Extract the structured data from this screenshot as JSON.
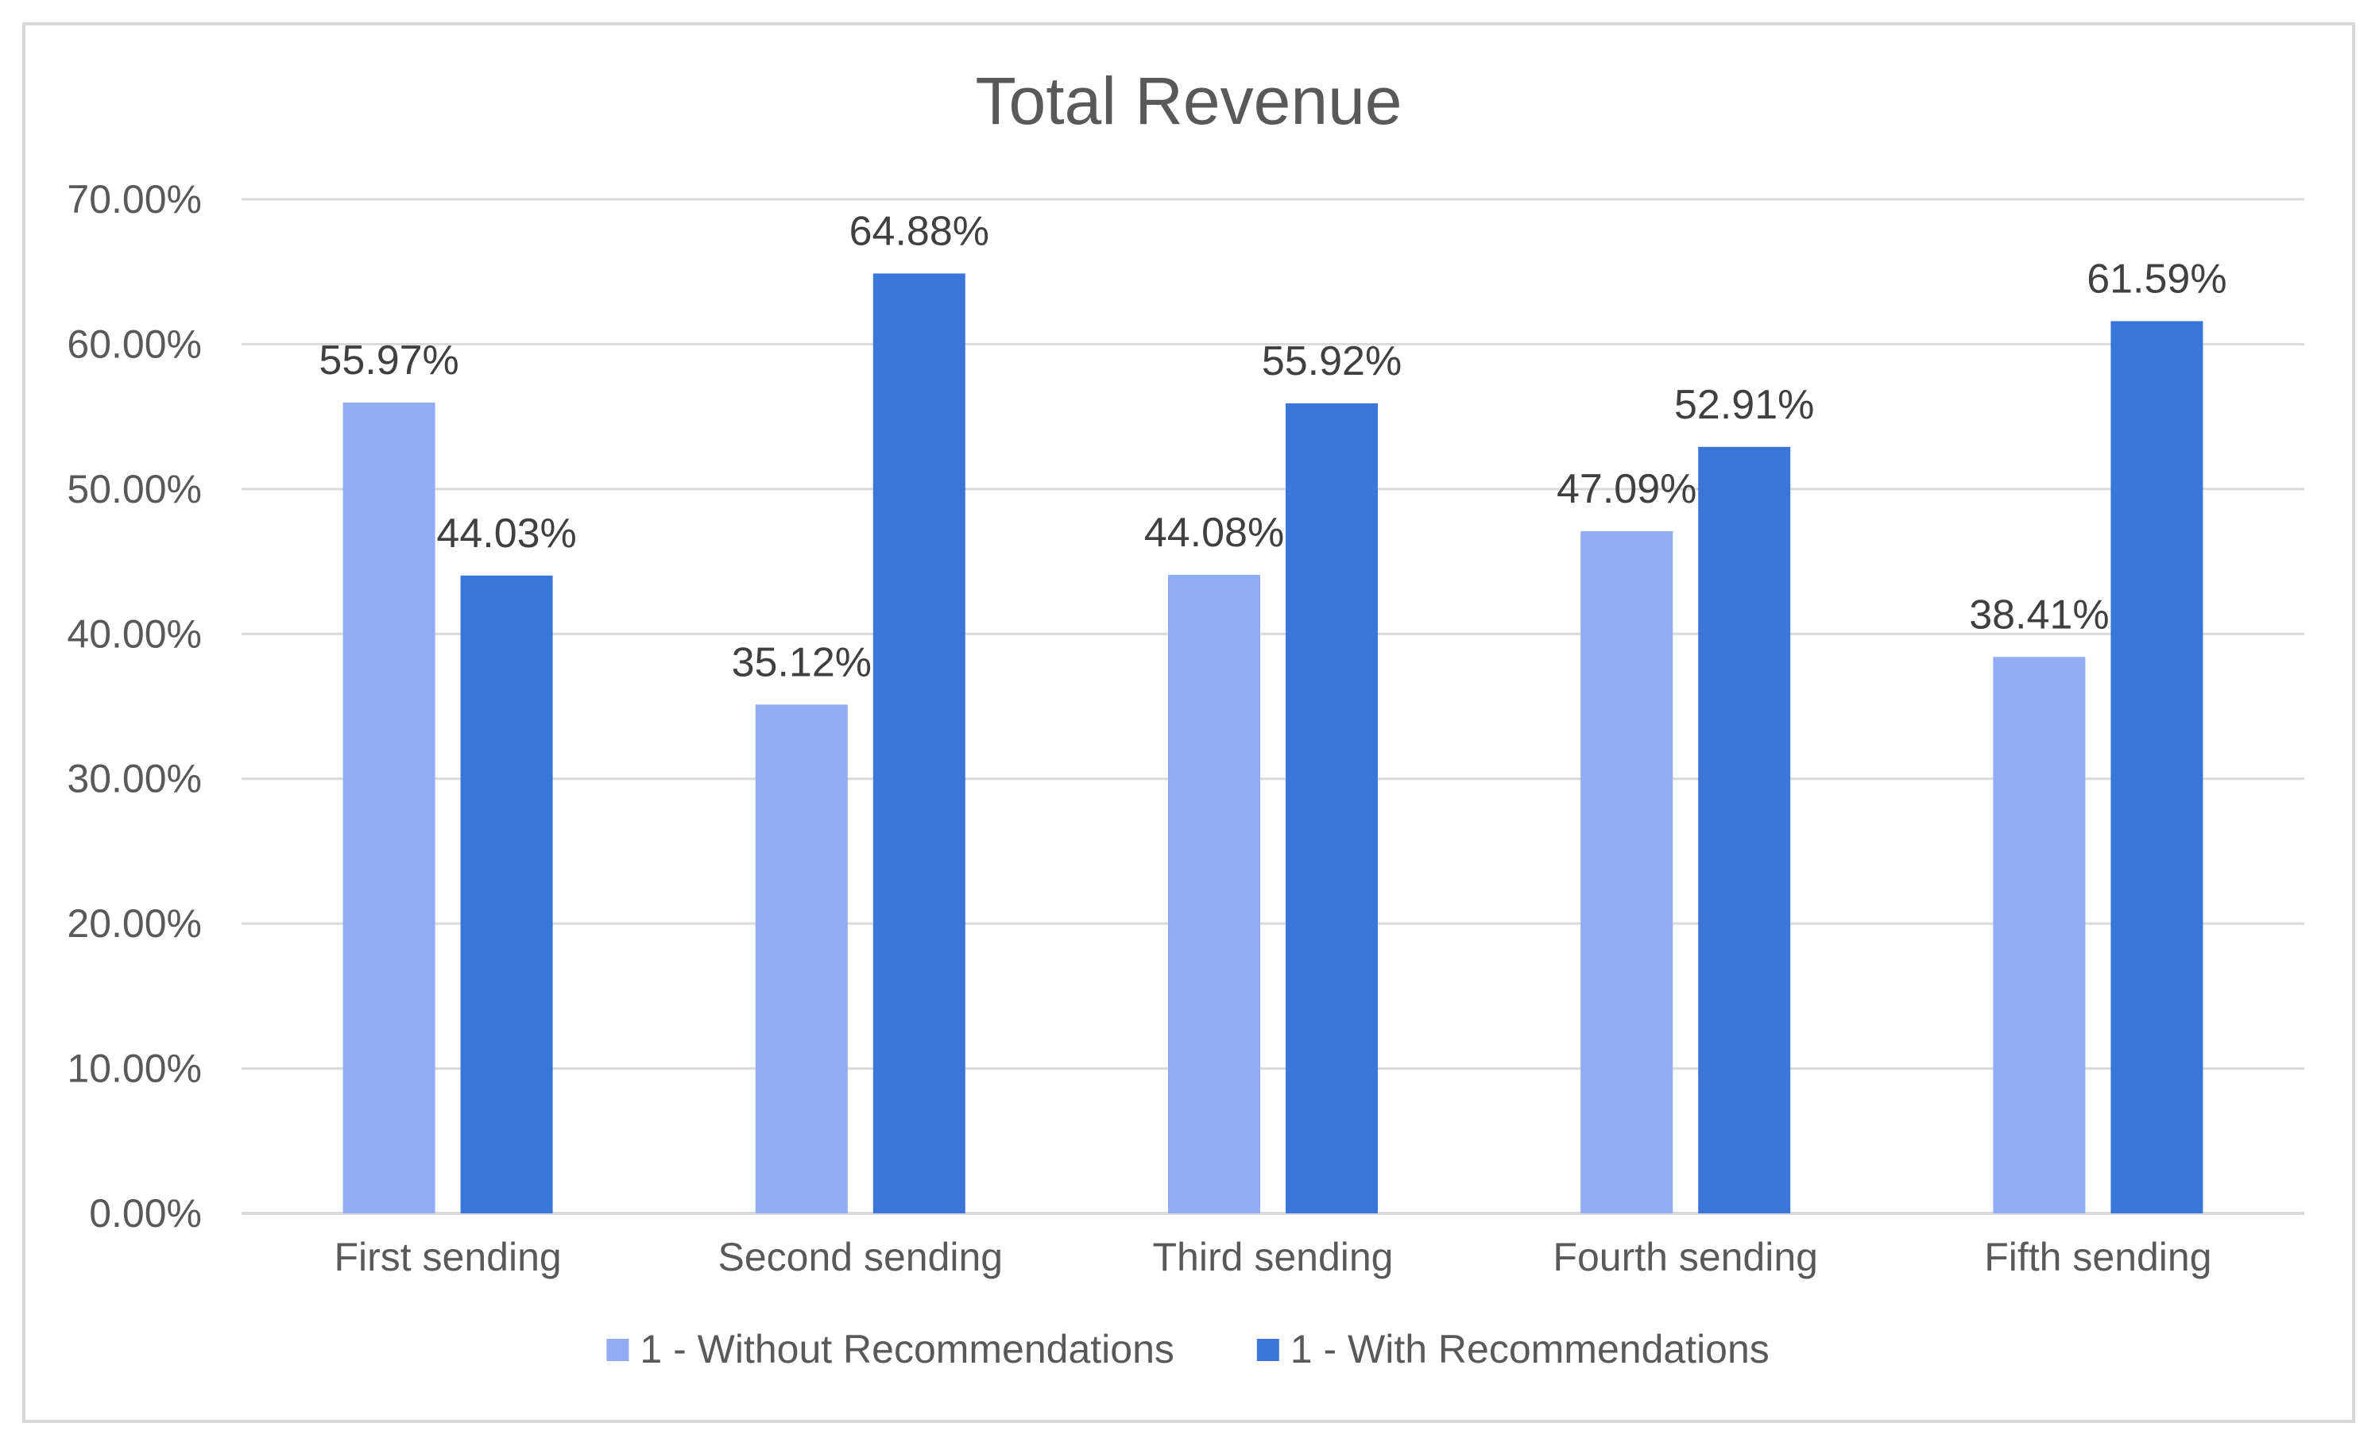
{
  "chart_data": {
    "type": "bar",
    "title": "Total Revenue",
    "xlabel": "",
    "ylabel": "",
    "ylim": [
      0,
      70
    ],
    "ytick_step": 10,
    "ytick_labels": [
      "0.00%",
      "10.00%",
      "20.00%",
      "30.00%",
      "40.00%",
      "50.00%",
      "60.00%",
      "70.00%"
    ],
    "grid": true,
    "legend_position": "bottom",
    "categories": [
      "First sending",
      "Second sending",
      "Third sending",
      "Fourth sending",
      "Fifth sending"
    ],
    "series": [
      {
        "name": "1 - Without Recommendations",
        "color": "#91abf5",
        "values": [
          55.97,
          35.12,
          44.08,
          47.09,
          38.41
        ],
        "labels": [
          "55.97%",
          "35.12%",
          "44.08%",
          "47.09%",
          "38.41%"
        ]
      },
      {
        "name": "1 - With Recommendations",
        "color": "#3a75d9",
        "values": [
          44.03,
          64.88,
          55.92,
          52.91,
          61.59
        ],
        "labels": [
          "44.03%",
          "64.88%",
          "55.92%",
          "52.91%",
          "61.59%"
        ]
      }
    ]
  }
}
